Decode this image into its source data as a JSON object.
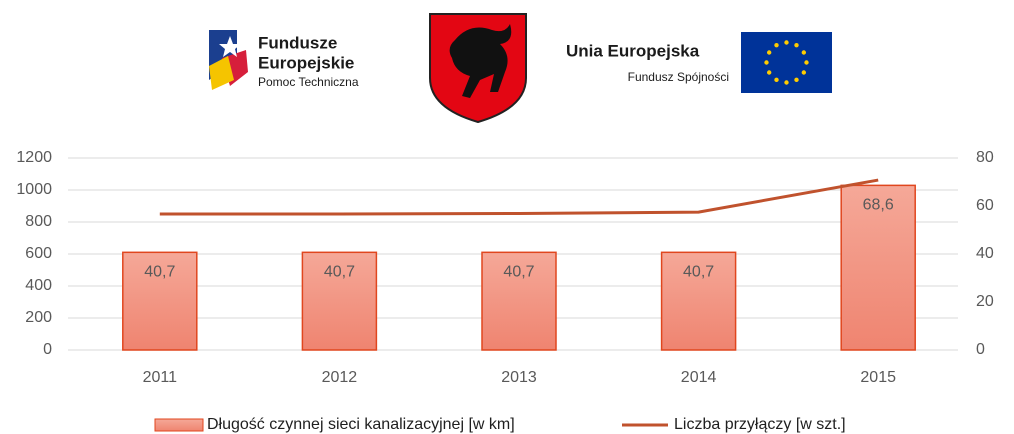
{
  "header": {
    "logo_left": {
      "line1": "Fundusze",
      "line2": "Europejskie",
      "line3": "Pomoc Techniczna"
    },
    "logo_right": {
      "line1": "Unia Europejska",
      "line2": "Fundusz Spójności"
    }
  },
  "chart_data": {
    "type": "bar",
    "categories": [
      "2011",
      "2012",
      "2013",
      "2014",
      "2015"
    ],
    "series": [
      {
        "name": "Długość czynnej sieci kanalizacyjnej [w km]",
        "type": "bar",
        "axis": "y2",
        "color": "#f29b88",
        "edge": "#e0461e",
        "values": [
          40.7,
          40.7,
          40.7,
          40.7,
          68.6
        ],
        "value_labels": [
          "40,7",
          "40,7",
          "40,7",
          "40,7",
          "68,6"
        ]
      },
      {
        "name": "Liczba przyłączy [w szt.]",
        "type": "line",
        "color": "#c0522d",
        "values": [
          850,
          850,
          853,
          862,
          1062
        ]
      }
    ],
    "ylim": [
      0,
      1200
    ],
    "yticks": [
      0,
      200,
      400,
      600,
      800,
      1000,
      1200
    ],
    "y2lim": [
      0,
      80
    ],
    "y2ticks": [
      0,
      20,
      40,
      60,
      80
    ],
    "grid": true,
    "legend": "bottom"
  }
}
